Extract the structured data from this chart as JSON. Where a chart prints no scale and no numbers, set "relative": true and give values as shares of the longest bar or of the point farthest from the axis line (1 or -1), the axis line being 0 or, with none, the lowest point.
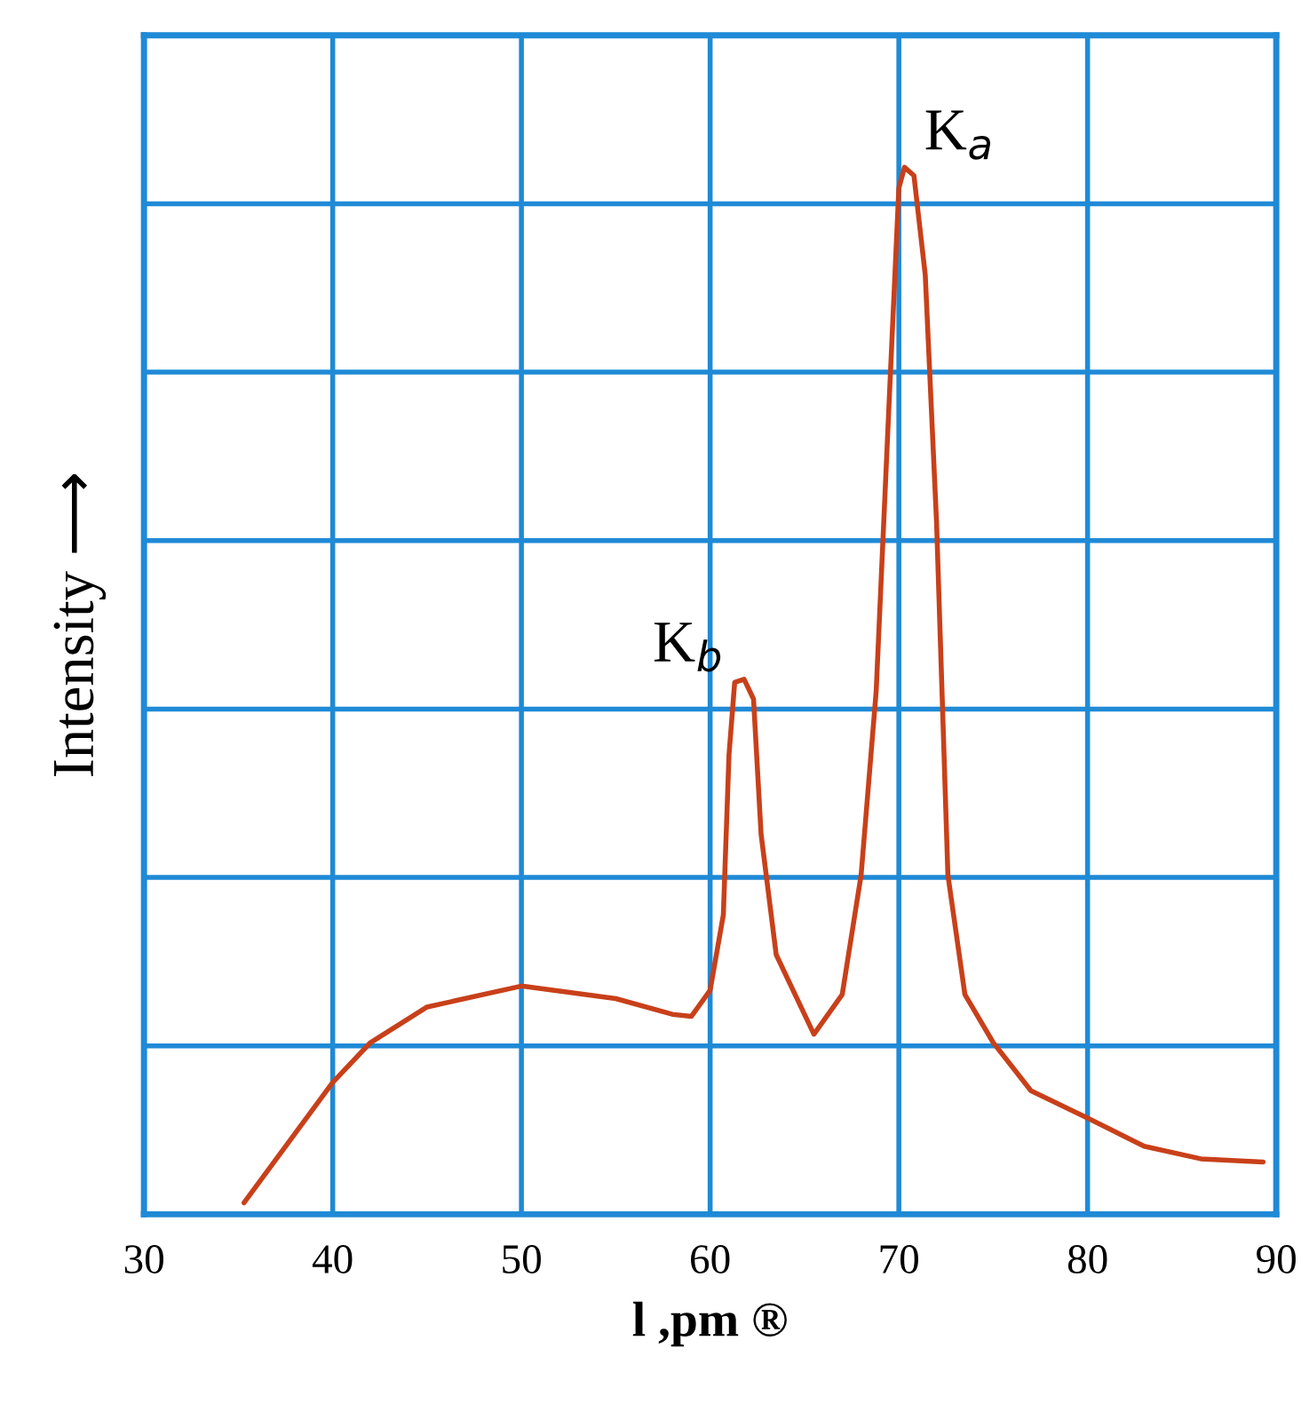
{
  "chart_data": {
    "type": "line",
    "relative": true,
    "xlabel": "l ,pm ®",
    "ylabel": "Intensity ⟶",
    "xlim": [
      30,
      90
    ],
    "xticks": [
      30,
      40,
      50,
      60,
      70,
      80,
      90
    ],
    "grid": true,
    "tick_labels": "x",
    "marker": "none",
    "line_style": "solid",
    "annotations": [
      {
        "text": "K$_{a}$",
        "x": 70.3,
        "y": 1
      },
      {
        "text": "K$_{b}$",
        "x": 61.8,
        "y": 0.511
      }
    ],
    "series": [
      {
        "color": "#c8401a",
        "x": [
          35.3,
          40,
          42,
          45,
          50,
          55,
          58,
          59,
          60,
          60.7,
          61,
          61.3,
          61.8,
          62.3,
          62.7,
          63.5,
          65.5,
          67,
          68,
          68.8,
          69.5,
          70,
          70.3,
          70.8,
          71.4,
          72,
          72.6,
          73.5,
          75,
          77,
          80,
          83,
          86,
          89.3
        ],
        "values": [
          0.011,
          0.126,
          0.164,
          0.198,
          0.218,
          0.206,
          0.191,
          0.189,
          0.214,
          0.286,
          0.439,
          0.508,
          0.511,
          0.492,
          0.363,
          0.248,
          0.172,
          0.21,
          0.324,
          0.5,
          0.782,
          0.98,
          1,
          0.992,
          0.897,
          0.66,
          0.324,
          0.21,
          0.164,
          0.118,
          0.092,
          0.065,
          0.053,
          0.05
        ]
      }
    ]
  }
}
